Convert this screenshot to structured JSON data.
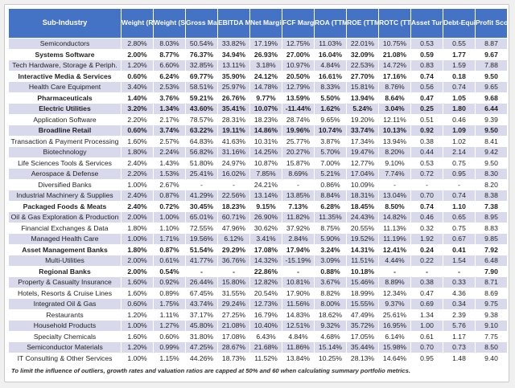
{
  "colors": {
    "header_bg": "#4472C4",
    "band_row": "#D9D9EC",
    "plain_row": "#FFFFFF",
    "header_text": "#FFFFFF",
    "cell_text": "#1F1F1F"
  },
  "chart_data": {
    "type": "table",
    "columns": [
      "Sub-Industry",
      "Weight (RSP)",
      "Weight (SPY)",
      "Gross Margin (TTM)",
      "EBITDA Margin (TTM)",
      "Net Margin (TTM)",
      "FCF Margin (TTM)",
      "ROA (TTM)",
      "ROE (TTM)",
      "ROTC (TTM)",
      "Asset Turnover (TTM)",
      "Debt-Equity (MRQ)",
      "Profit Score"
    ],
    "rows": [
      {
        "name": "Semiconductors",
        "bold": false,
        "values": [
          "2.80%",
          "8.03%",
          "50.54%",
          "33.82%",
          "17.19%",
          "12.75%",
          "11.03%",
          "22.01%",
          "10.75%",
          "0.53",
          "0.55",
          "8.87"
        ]
      },
      {
        "name": "Systems Software",
        "bold": true,
        "values": [
          "2.00%",
          "8.77%",
          "76.37%",
          "34.94%",
          "26.93%",
          "27.00%",
          "16.04%",
          "32.09%",
          "21.08%",
          "0.59",
          "1.77",
          "9.67"
        ]
      },
      {
        "name": "Tech Hardware, Storage & Periph.",
        "bold": false,
        "values": [
          "1.20%",
          "6.60%",
          "32.85%",
          "13.11%",
          "3.18%",
          "10.97%",
          "4.84%",
          "22.53%",
          "14.72%",
          "0.83",
          "1.59",
          "7.88"
        ]
      },
      {
        "name": "Interactive Media & Services",
        "bold": true,
        "values": [
          "0.60%",
          "6.24%",
          "69.77%",
          "35.90%",
          "24.12%",
          "20.50%",
          "16.61%",
          "27.70%",
          "17.16%",
          "0.74",
          "0.18",
          "9.50"
        ]
      },
      {
        "name": "Health Care Equipment",
        "bold": false,
        "values": [
          "3.40%",
          "2.53%",
          "58.51%",
          "25.97%",
          "14.78%",
          "12.79%",
          "8.33%",
          "15.81%",
          "8.76%",
          "0.56",
          "0.74",
          "9.65"
        ]
      },
      {
        "name": "Pharmaceuticals",
        "bold": true,
        "values": [
          "1.40%",
          "3.76%",
          "59.21%",
          "26.76%",
          "9.77%",
          "13.59%",
          "5.50%",
          "13.94%",
          "8.64%",
          "0.47",
          "1.05",
          "9.68"
        ]
      },
      {
        "name": "Electric Utilities",
        "bold": true,
        "values": [
          "3.20%",
          "1.34%",
          "43.60%",
          "35.41%",
          "10.07%",
          "-11.44%",
          "1.62%",
          "5.24%",
          "3.04%",
          "0.25",
          "1.80",
          "6.44"
        ]
      },
      {
        "name": "Application Software",
        "bold": false,
        "values": [
          "2.20%",
          "2.17%",
          "78.57%",
          "28.31%",
          "18.23%",
          "28.74%",
          "9.65%",
          "19.20%",
          "12.11%",
          "0.51",
          "0.46",
          "9.39"
        ]
      },
      {
        "name": "Broadline Retail",
        "bold": true,
        "values": [
          "0.60%",
          "3.74%",
          "63.22%",
          "19.11%",
          "14.86%",
          "19.96%",
          "10.74%",
          "33.74%",
          "10.13%",
          "0.92",
          "1.09",
          "9.50"
        ]
      },
      {
        "name": "Transaction & Payment Processing",
        "bold": false,
        "values": [
          "1.60%",
          "2.57%",
          "64.83%",
          "41.63%",
          "10.31%",
          "25.77%",
          "3.87%",
          "17.34%",
          "13.94%",
          "0.38",
          "1.02",
          "8.41"
        ]
      },
      {
        "name": "Biotechnology",
        "bold": false,
        "values": [
          "1.80%",
          "2.24%",
          "56.82%",
          "31.16%",
          "14.25%",
          "20.27%",
          "5.70%",
          "19.47%",
          "8.20%",
          "0.44",
          "2.14",
          "9.42"
        ]
      },
      {
        "name": "Life Sciences Tools & Services",
        "bold": false,
        "values": [
          "2.40%",
          "1.43%",
          "51.80%",
          "24.97%",
          "10.87%",
          "15.87%",
          "7.00%",
          "12.77%",
          "9.10%",
          "0.53",
          "0.75",
          "9.50"
        ]
      },
      {
        "name": "Aerospace & Defense",
        "bold": false,
        "values": [
          "2.20%",
          "1.53%",
          "25.41%",
          "16.02%",
          "7.85%",
          "8.69%",
          "5.21%",
          "17.04%",
          "7.74%",
          "0.72",
          "0.95",
          "8.30"
        ]
      },
      {
        "name": "Diversified Banks",
        "bold": false,
        "values": [
          "1.00%",
          "2.67%",
          "-",
          "-",
          "24.21%",
          "-",
          "0.86%",
          "10.09%",
          "-",
          "-",
          "-",
          "8.20"
        ]
      },
      {
        "name": "Industrial Machinery & Supplies",
        "bold": false,
        "values": [
          "2.40%",
          "0.87%",
          "41.29%",
          "22.56%",
          "13.14%",
          "13.85%",
          "8.84%",
          "18.31%",
          "13.04%",
          "0.70",
          "0.74",
          "8.38"
        ]
      },
      {
        "name": "Packaged Foods & Meats",
        "bold": true,
        "values": [
          "2.40%",
          "0.72%",
          "30.45%",
          "18.23%",
          "9.15%",
          "7.13%",
          "6.28%",
          "18.45%",
          "8.50%",
          "0.74",
          "1.10",
          "7.38"
        ]
      },
      {
        "name": "Oil & Gas Exploration & Production",
        "bold": false,
        "values": [
          "2.00%",
          "1.00%",
          "65.01%",
          "60.71%",
          "26.90%",
          "11.82%",
          "11.35%",
          "24.43%",
          "14.82%",
          "0.46",
          "0.65",
          "8.95"
        ]
      },
      {
        "name": "Financial Exchanges & Data",
        "bold": false,
        "values": [
          "1.80%",
          "1.10%",
          "72.55%",
          "47.96%",
          "30.62%",
          "37.92%",
          "8.75%",
          "20.55%",
          "11.13%",
          "0.32",
          "0.75",
          "8.83"
        ]
      },
      {
        "name": "Managed Health Care",
        "bold": false,
        "values": [
          "1.00%",
          "1.71%",
          "19.56%",
          "6.12%",
          "3.41%",
          "2.84%",
          "5.90%",
          "19.52%",
          "11.19%",
          "1.92",
          "0.67",
          "9.85"
        ]
      },
      {
        "name": "Asset Management Banks",
        "bold": true,
        "values": [
          "1.80%",
          "0.87%",
          "51.54%",
          "29.29%",
          "17.08%",
          "17.94%",
          "3.24%",
          "14.31%",
          "12.41%",
          "0.24",
          "0.41",
          "7.92"
        ]
      },
      {
        "name": "Multi-Utilities",
        "bold": false,
        "values": [
          "2.00%",
          "0.61%",
          "41.77%",
          "36.76%",
          "14.32%",
          "-15.19%",
          "3.09%",
          "11.51%",
          "4.44%",
          "0.22",
          "1.54",
          "6.48"
        ]
      },
      {
        "name": "Regional Banks",
        "bold": true,
        "values": [
          "2.00%",
          "0.54%",
          "-",
          "-",
          "22.86%",
          "-",
          "0.88%",
          "10.18%",
          "-",
          "-",
          "-",
          "7.90"
        ]
      },
      {
        "name": "Property & Casualty Insurance",
        "bold": false,
        "values": [
          "1.60%",
          "0.92%",
          "26.44%",
          "15.80%",
          "12.82%",
          "10.81%",
          "3.67%",
          "15.46%",
          "8.89%",
          "0.38",
          "0.33",
          "8.71"
        ]
      },
      {
        "name": "Hotels, Resorts & Cruise Lines",
        "bold": false,
        "values": [
          "1.60%",
          "0.89%",
          "67.45%",
          "31.55%",
          "20.54%",
          "17.90%",
          "8.82%",
          "18.99%",
          "12.34%",
          "0.47",
          "4.36",
          "8.69"
        ]
      },
      {
        "name": "Integrated Oil & Gas",
        "bold": false,
        "values": [
          "0.60%",
          "1.75%",
          "43.74%",
          "29.24%",
          "12.73%",
          "11.56%",
          "8.00%",
          "15.55%",
          "9.37%",
          "0.69",
          "0.34",
          "9.75"
        ]
      },
      {
        "name": "Restaurants",
        "bold": false,
        "values": [
          "1.20%",
          "1.11%",
          "37.17%",
          "27.25%",
          "16.79%",
          "14.83%",
          "18.62%",
          "47.49%",
          "25.61%",
          "1.34",
          "2.39",
          "9.38"
        ]
      },
      {
        "name": "Household Products",
        "bold": false,
        "values": [
          "1.00%",
          "1.27%",
          "45.80%",
          "21.08%",
          "10.40%",
          "12.51%",
          "9.32%",
          "35.72%",
          "16.95%",
          "1.00",
          "5.76",
          "9.10"
        ]
      },
      {
        "name": "Specialty Chemicals",
        "bold": false,
        "values": [
          "1.60%",
          "0.60%",
          "31.80%",
          "17.08%",
          "6.43%",
          "4.84%",
          "4.68%",
          "17.05%",
          "6.14%",
          "0.61",
          "1.17",
          "7.75"
        ]
      },
      {
        "name": "Semiconductor Materials",
        "bold": false,
        "values": [
          "1.20%",
          "0.99%",
          "47.25%",
          "28.67%",
          "21.68%",
          "11.86%",
          "15.14%",
          "35.44%",
          "15.98%",
          "0.70",
          "0.73",
          "8.50"
        ]
      },
      {
        "name": "IT Consulting & Other Services",
        "bold": false,
        "values": [
          "1.00%",
          "1.15%",
          "44.26%",
          "18.73%",
          "11.52%",
          "13.84%",
          "10.25%",
          "28.13%",
          "14.64%",
          "0.95",
          "1.48",
          "9.40"
        ]
      }
    ],
    "footnote": "To limit the influence of outliers, growth rates and valuation ratios are capped at 50% and 60 when calculating summary portfolio metrics."
  }
}
